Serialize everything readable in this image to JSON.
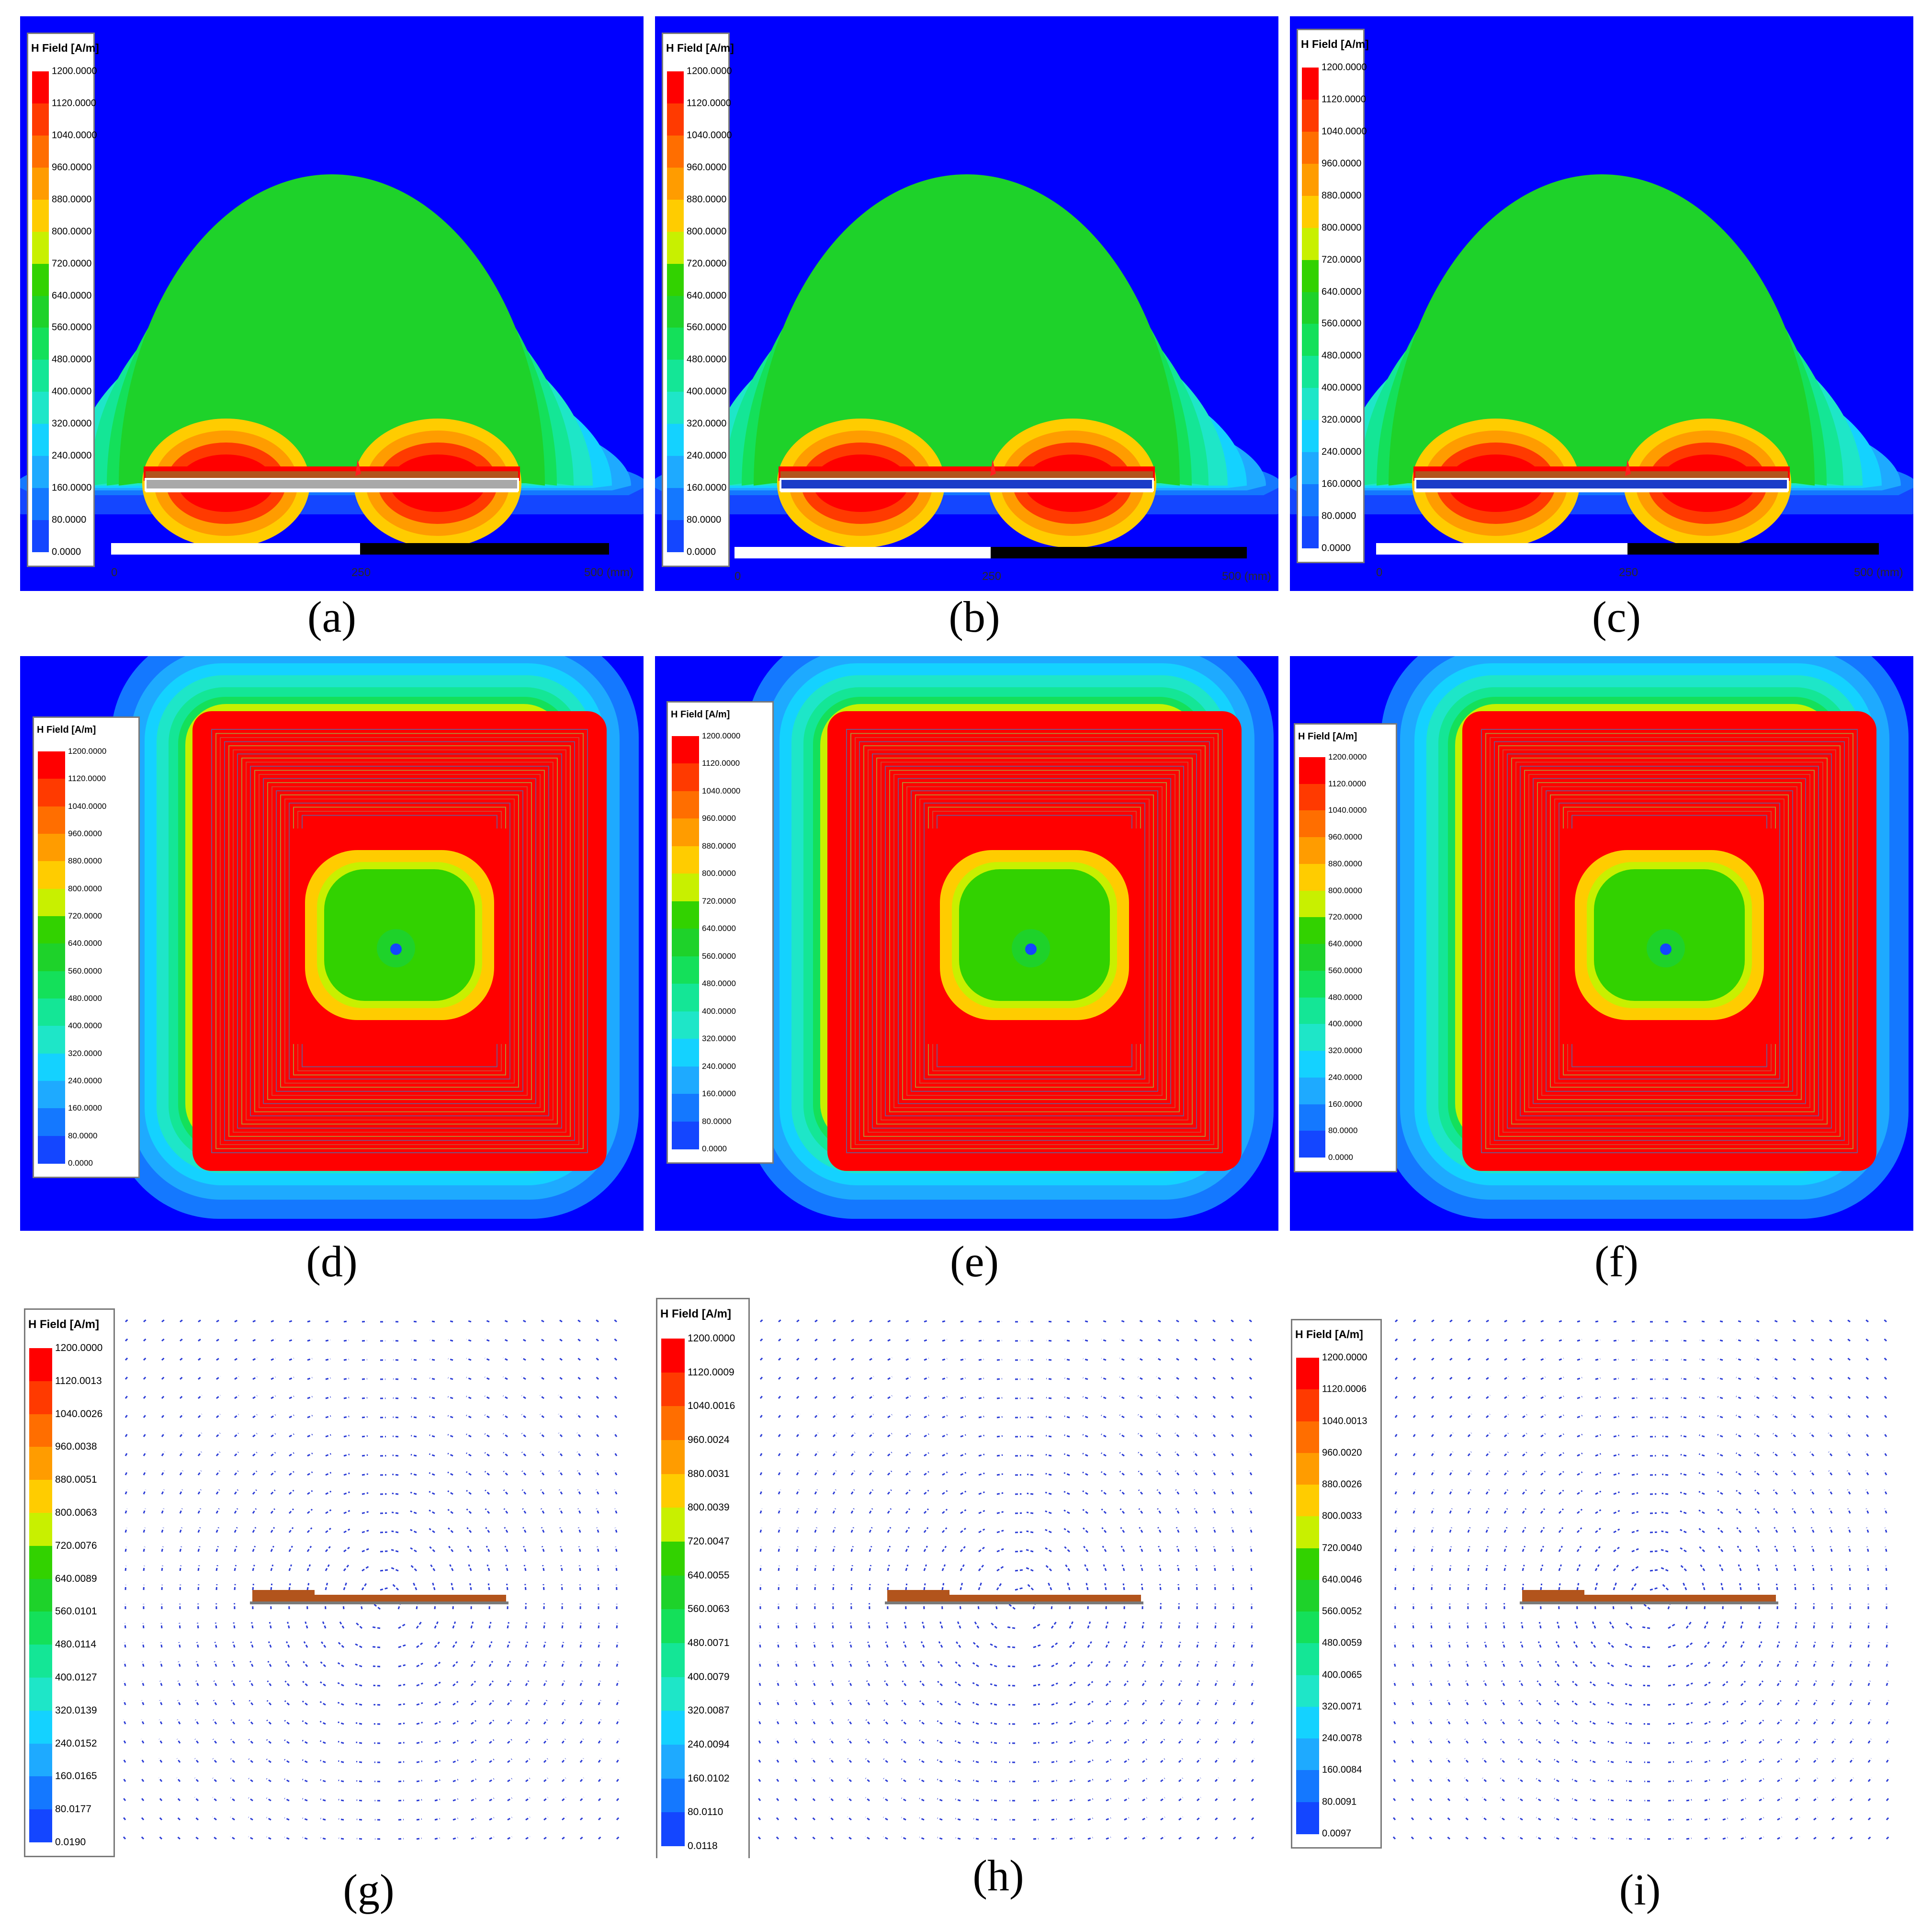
{
  "figure": {
    "title": "H Field [A/m]",
    "panels": [
      {
        "id": "a",
        "caption": "(a)",
        "view": "side",
        "substrate": "gray",
        "legend_labels": [
          "1200.0000",
          "1120.0000",
          "1040.0000",
          "960.0000",
          "880.0000",
          "800.0000",
          "720.0000",
          "640.0000",
          "560.0000",
          "480.0000",
          "400.0000",
          "320.0000",
          "240.0000",
          "160.0000",
          "80.0000",
          "0.0000"
        ],
        "scale_labels": [
          "0",
          "250",
          "500 (mm)"
        ]
      },
      {
        "id": "b",
        "caption": "(b)",
        "view": "side",
        "substrate": "blue",
        "legend_labels": [
          "1200.0000",
          "1120.0000",
          "1040.0000",
          "960.0000",
          "880.0000",
          "800.0000",
          "720.0000",
          "640.0000",
          "560.0000",
          "480.0000",
          "400.0000",
          "320.0000",
          "240.0000",
          "160.0000",
          "80.0000",
          "0.0000"
        ],
        "scale_labels": [
          "0",
          "250",
          "500 (mm)"
        ]
      },
      {
        "id": "c",
        "caption": "(c)",
        "view": "side",
        "substrate": "blue",
        "legend_labels": [
          "1200.0000",
          "1120.0000",
          "1040.0000",
          "960.0000",
          "880.0000",
          "800.0000",
          "720.0000",
          "640.0000",
          "560.0000",
          "480.0000",
          "400.0000",
          "320.0000",
          "240.0000",
          "160.0000",
          "80.0000",
          "0.0000"
        ],
        "scale_labels": [
          "0",
          "250",
          "500 (mm)"
        ]
      },
      {
        "id": "d",
        "caption": "(d)",
        "view": "top",
        "legend_labels": [
          "1200.0000",
          "1120.0000",
          "1040.0000",
          "960.0000",
          "880.0000",
          "800.0000",
          "720.0000",
          "640.0000",
          "560.0000",
          "480.0000",
          "400.0000",
          "320.0000",
          "240.0000",
          "160.0000",
          "80.0000",
          "0.0000"
        ]
      },
      {
        "id": "e",
        "caption": "(e)",
        "view": "top",
        "legend_labels": [
          "1200.0000",
          "1120.0000",
          "1040.0000",
          "960.0000",
          "880.0000",
          "800.0000",
          "720.0000",
          "640.0000",
          "560.0000",
          "480.0000",
          "400.0000",
          "320.0000",
          "240.0000",
          "160.0000",
          "80.0000",
          "0.0000"
        ]
      },
      {
        "id": "f",
        "caption": "(f)",
        "view": "top",
        "legend_labels": [
          "1200.0000",
          "1120.0000",
          "1040.0000",
          "960.0000",
          "880.0000",
          "800.0000",
          "720.0000",
          "640.0000",
          "560.0000",
          "480.0000",
          "400.0000",
          "320.0000",
          "240.0000",
          "160.0000",
          "80.0000",
          "0.0000"
        ]
      },
      {
        "id": "g",
        "caption": "(g)",
        "view": "vector",
        "legend_labels": [
          "1200.0000",
          "1120.0013",
          "1040.0026",
          "960.0038",
          "880.0051",
          "800.0063",
          "720.0076",
          "640.0089",
          "560.0101",
          "480.0114",
          "400.0127",
          "320.0139",
          "240.0152",
          "160.0165",
          "80.0177",
          "0.0190"
        ]
      },
      {
        "id": "h",
        "caption": "(h)",
        "view": "vector",
        "legend_labels": [
          "1200.0000",
          "1120.0009",
          "1040.0016",
          "960.0024",
          "880.0031",
          "800.0039",
          "720.0047",
          "640.0055",
          "560.0063",
          "480.0071",
          "400.0079",
          "320.0087",
          "240.0094",
          "160.0102",
          "80.0110",
          "0.0118"
        ]
      },
      {
        "id": "i",
        "caption": "(i)",
        "view": "vector",
        "legend_labels": [
          "1200.0000",
          "1120.0006",
          "1040.0013",
          "960.0020",
          "880.0026",
          "800.0033",
          "720.0040",
          "640.0046",
          "560.0052",
          "480.0059",
          "400.0065",
          "320.0071",
          "240.0078",
          "160.0084",
          "80.0091",
          "0.0097"
        ]
      }
    ]
  },
  "colors": {
    "scale": [
      "#ff0000",
      "#ff3a00",
      "#ff6e00",
      "#ff9c00",
      "#ffcc00",
      "#c8f000",
      "#32d200",
      "#1ed22a",
      "#14e05a",
      "#14e696",
      "#1ee6c8",
      "#14d2ff",
      "#1eaaff",
      "#1478ff",
      "#1446ff",
      "#0000ff"
    ],
    "background": "#0a0aff",
    "coil": "#b2541c",
    "arrow": "#2b3cd6"
  }
}
